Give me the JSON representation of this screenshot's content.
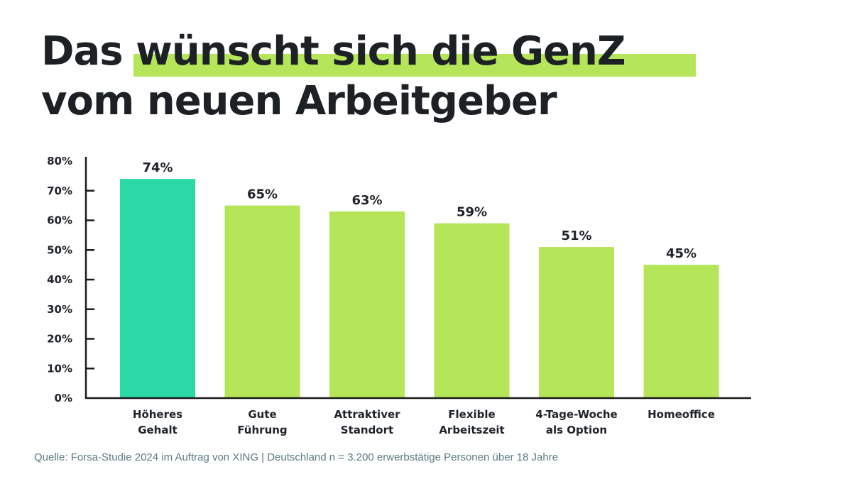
{
  "title": {
    "line1_prefix": "Das",
    "line1_highlight": "wünscht sich die GenZ",
    "line2": "vom neuen Arbeitgeber",
    "highlight_color": "#b5e65a"
  },
  "chart_data": {
    "type": "bar",
    "title": "Das wünscht sich die GenZ vom neuen Arbeitgeber",
    "categories": [
      [
        "Höheres",
        "Gehalt"
      ],
      [
        "Gute",
        "Führung"
      ],
      [
        "Attraktiver",
        "Standort"
      ],
      [
        "Flexible",
        "Arbeitszeit"
      ],
      [
        "4-Tage-Woche",
        "als Option"
      ],
      [
        "Homeoffice"
      ]
    ],
    "values": [
      74,
      65,
      63,
      59,
      51,
      45
    ],
    "value_labels": [
      "74%",
      "65%",
      "63%",
      "59%",
      "51%",
      "45%"
    ],
    "bar_colors": [
      "#2ad9a5",
      "#b5e65a",
      "#b5e65a",
      "#b5e65a",
      "#b5e65a",
      "#b5e65a"
    ],
    "xlabel": "",
    "ylabel": "",
    "ylim": [
      0,
      80
    ],
    "yticks": [
      "0%",
      "10%",
      "20%",
      "30%",
      "40%",
      "50%",
      "60%",
      "70%",
      "80%"
    ],
    "grid": false,
    "legend": "none"
  },
  "source": "Quelle: Forsa-Studie 2024 im Auftrag von XING | Deutschland n = 3.200 erwerbstätige Personen über 18 Jahre"
}
